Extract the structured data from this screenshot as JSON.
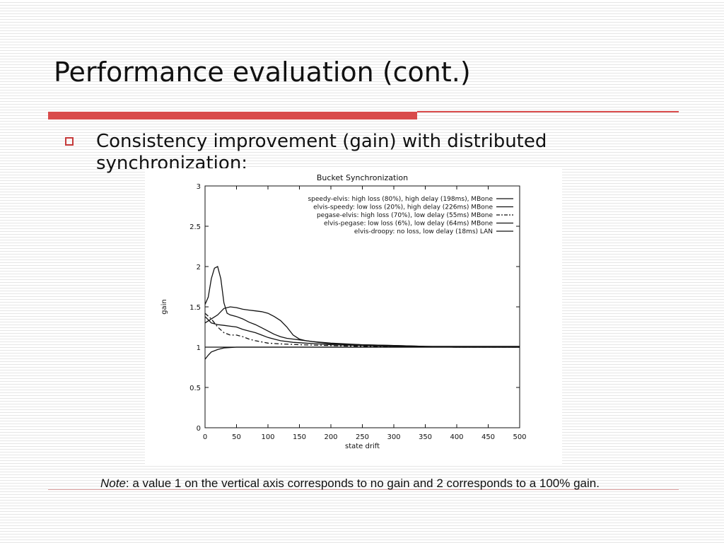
{
  "slide": {
    "title": "Performance evaluation (cont.)",
    "bullet": "Consistency improvement (gain) with distributed synchronization:",
    "note_label": "Note",
    "note_text": ": a value 1 on the vertical axis corresponds to no gain and 2 corresponds to a 100% gain."
  },
  "chart_data": {
    "type": "line",
    "title": "Bucket Synchronization",
    "xlabel": "state drift",
    "ylabel": "gain",
    "xlim": [
      0,
      500
    ],
    "ylim": [
      0,
      3
    ],
    "xticks": [
      "0",
      "50",
      "100",
      "150",
      "200",
      "250",
      "300",
      "350",
      "400",
      "450",
      "500"
    ],
    "yticks": [
      "0",
      "0.5",
      "1",
      "1.5",
      "2",
      "2.5",
      "3"
    ],
    "grid": false,
    "legend_position": "top-right",
    "series": [
      {
        "name": "speedy-elvis: high loss (80%), high delay (198ms), MBone",
        "style": "solid",
        "points": [
          [
            0,
            1.53
          ],
          [
            5,
            1.62
          ],
          [
            10,
            1.85
          ],
          [
            15,
            1.98
          ],
          [
            20,
            2.0
          ],
          [
            25,
            1.85
          ],
          [
            30,
            1.55
          ],
          [
            35,
            1.42
          ],
          [
            40,
            1.4
          ],
          [
            50,
            1.38
          ],
          [
            60,
            1.35
          ],
          [
            70,
            1.31
          ],
          [
            80,
            1.28
          ],
          [
            90,
            1.24
          ],
          [
            100,
            1.2
          ],
          [
            110,
            1.16
          ],
          [
            120,
            1.13
          ],
          [
            130,
            1.11
          ],
          [
            140,
            1.1
          ],
          [
            150,
            1.09
          ],
          [
            170,
            1.07
          ],
          [
            200,
            1.05
          ],
          [
            250,
            1.03
          ],
          [
            300,
            1.02
          ],
          [
            350,
            1.01
          ],
          [
            400,
            1.01
          ],
          [
            450,
            1.01
          ],
          [
            500,
            1.01
          ]
        ]
      },
      {
        "name": "elvis-speedy: low loss (20%), high delay (226ms) MBone",
        "style": "solid",
        "points": [
          [
            0,
            1.3
          ],
          [
            10,
            1.35
          ],
          [
            20,
            1.4
          ],
          [
            30,
            1.48
          ],
          [
            40,
            1.5
          ],
          [
            50,
            1.49
          ],
          [
            60,
            1.47
          ],
          [
            70,
            1.46
          ],
          [
            80,
            1.45
          ],
          [
            90,
            1.44
          ],
          [
            100,
            1.42
          ],
          [
            110,
            1.38
          ],
          [
            120,
            1.33
          ],
          [
            130,
            1.25
          ],
          [
            140,
            1.15
          ],
          [
            150,
            1.1
          ],
          [
            160,
            1.08
          ],
          [
            180,
            1.06
          ],
          [
            200,
            1.04
          ],
          [
            250,
            1.03
          ],
          [
            300,
            1.02
          ],
          [
            350,
            1.01
          ],
          [
            400,
            1.0
          ],
          [
            450,
            1.0
          ],
          [
            500,
            1.0
          ]
        ]
      },
      {
        "name": "pegase-elvis: high loss (70%), low delay (55ms) MBone",
        "style": "dashdot",
        "points": [
          [
            0,
            1.42
          ],
          [
            10,
            1.35
          ],
          [
            20,
            1.25
          ],
          [
            30,
            1.18
          ],
          [
            40,
            1.15
          ],
          [
            50,
            1.15
          ],
          [
            60,
            1.13
          ],
          [
            70,
            1.1
          ],
          [
            80,
            1.08
          ],
          [
            100,
            1.05
          ],
          [
            120,
            1.04
          ],
          [
            150,
            1.03
          ],
          [
            200,
            1.02
          ],
          [
            250,
            1.01
          ],
          [
            300,
            1.01
          ],
          [
            400,
            1.0
          ],
          [
            500,
            1.0
          ]
        ]
      },
      {
        "name": "elvis-pegase: low loss (6%), low delay (64ms) MBone",
        "style": "solid",
        "points": [
          [
            0,
            1.38
          ],
          [
            10,
            1.3
          ],
          [
            20,
            1.28
          ],
          [
            30,
            1.27
          ],
          [
            40,
            1.26
          ],
          [
            50,
            1.25
          ],
          [
            60,
            1.22
          ],
          [
            70,
            1.2
          ],
          [
            80,
            1.18
          ],
          [
            90,
            1.15
          ],
          [
            100,
            1.12
          ],
          [
            110,
            1.1
          ],
          [
            120,
            1.08
          ],
          [
            140,
            1.06
          ],
          [
            160,
            1.05
          ],
          [
            180,
            1.04
          ],
          [
            200,
            1.03
          ],
          [
            250,
            1.02
          ],
          [
            300,
            1.01
          ],
          [
            400,
            1.0
          ],
          [
            500,
            1.0
          ]
        ]
      },
      {
        "name": "elvis-droopy: no loss, low delay (18ms) LAN",
        "style": "solid",
        "points": [
          [
            0,
            0.85
          ],
          [
            5,
            0.9
          ],
          [
            10,
            0.94
          ],
          [
            20,
            0.97
          ],
          [
            30,
            0.99
          ],
          [
            50,
            1.0
          ],
          [
            100,
            1.0
          ],
          [
            500,
            1.0
          ]
        ]
      },
      {
        "name": "",
        "style": "solid",
        "points": [
          [
            0,
            1.0
          ],
          [
            500,
            1.0
          ]
        ]
      }
    ]
  }
}
